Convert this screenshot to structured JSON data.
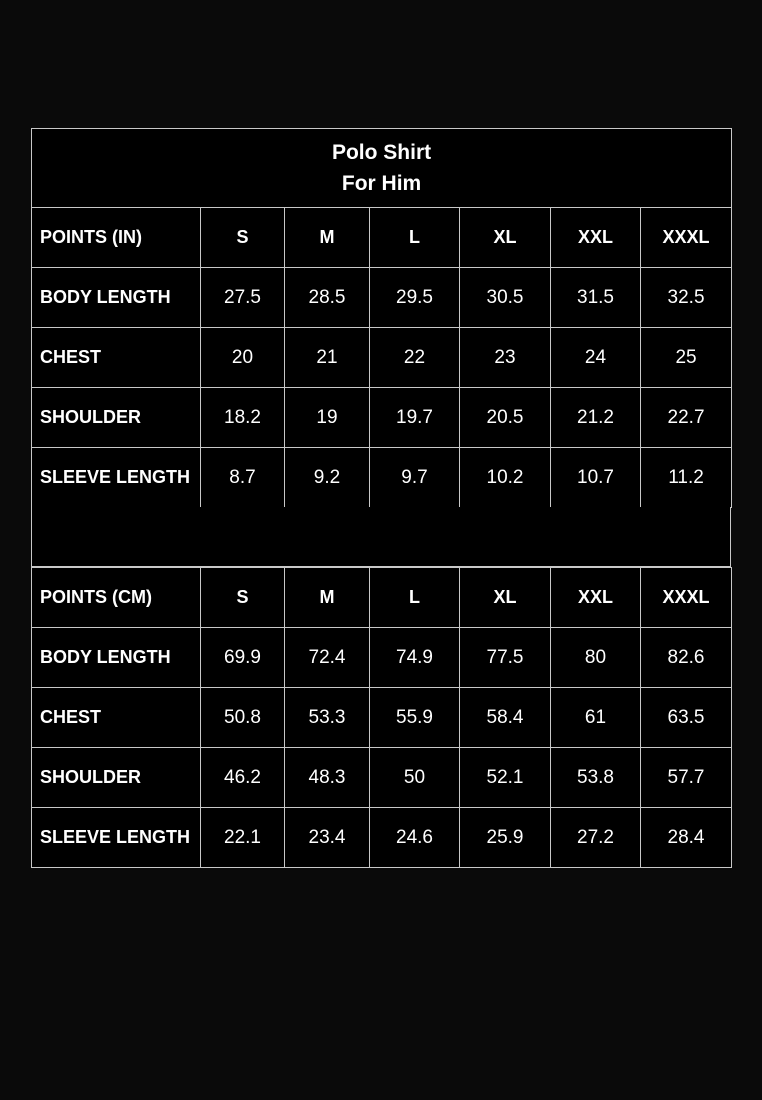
{
  "title": {
    "line1": "Polo Shirt",
    "line2": "For Him"
  },
  "sizes": [
    "S",
    "M",
    "L",
    "XL",
    "XXL",
    "XXXL"
  ],
  "inches": {
    "header": "POINTS  (IN)",
    "rows": [
      {
        "label": "BODY LENGTH",
        "values": [
          "27.5",
          "28.5",
          "29.5",
          "30.5",
          "31.5",
          "32.5"
        ]
      },
      {
        "label": "CHEST",
        "values": [
          "20",
          "21",
          "22",
          "23",
          "24",
          "25"
        ]
      },
      {
        "label": "SHOULDER",
        "values": [
          "18.2",
          "19",
          "19.7",
          "20.5",
          "21.2",
          "22.7"
        ]
      },
      {
        "label": "SLEEVE LENGTH",
        "values": [
          "8.7",
          "9.2",
          "9.7",
          "10.2",
          "10.7",
          "11.2"
        ]
      }
    ]
  },
  "cm": {
    "header": "POINTS  (CM)",
    "rows": [
      {
        "label": "BODY LENGTH",
        "values": [
          "69.9",
          "72.4",
          "74.9",
          "77.5",
          "80",
          "82.6"
        ]
      },
      {
        "label": "CHEST",
        "values": [
          "50.8",
          "53.3",
          "55.9",
          "58.4",
          "61",
          "63.5"
        ]
      },
      {
        "label": "SHOULDER",
        "values": [
          "46.2",
          "48.3",
          "50",
          "52.1",
          "53.8",
          "57.7"
        ]
      },
      {
        "label": "SLEEVE LENGTH",
        "values": [
          "22.1",
          "23.4",
          "24.6",
          "25.9",
          "27.2",
          "28.4"
        ]
      }
    ]
  }
}
